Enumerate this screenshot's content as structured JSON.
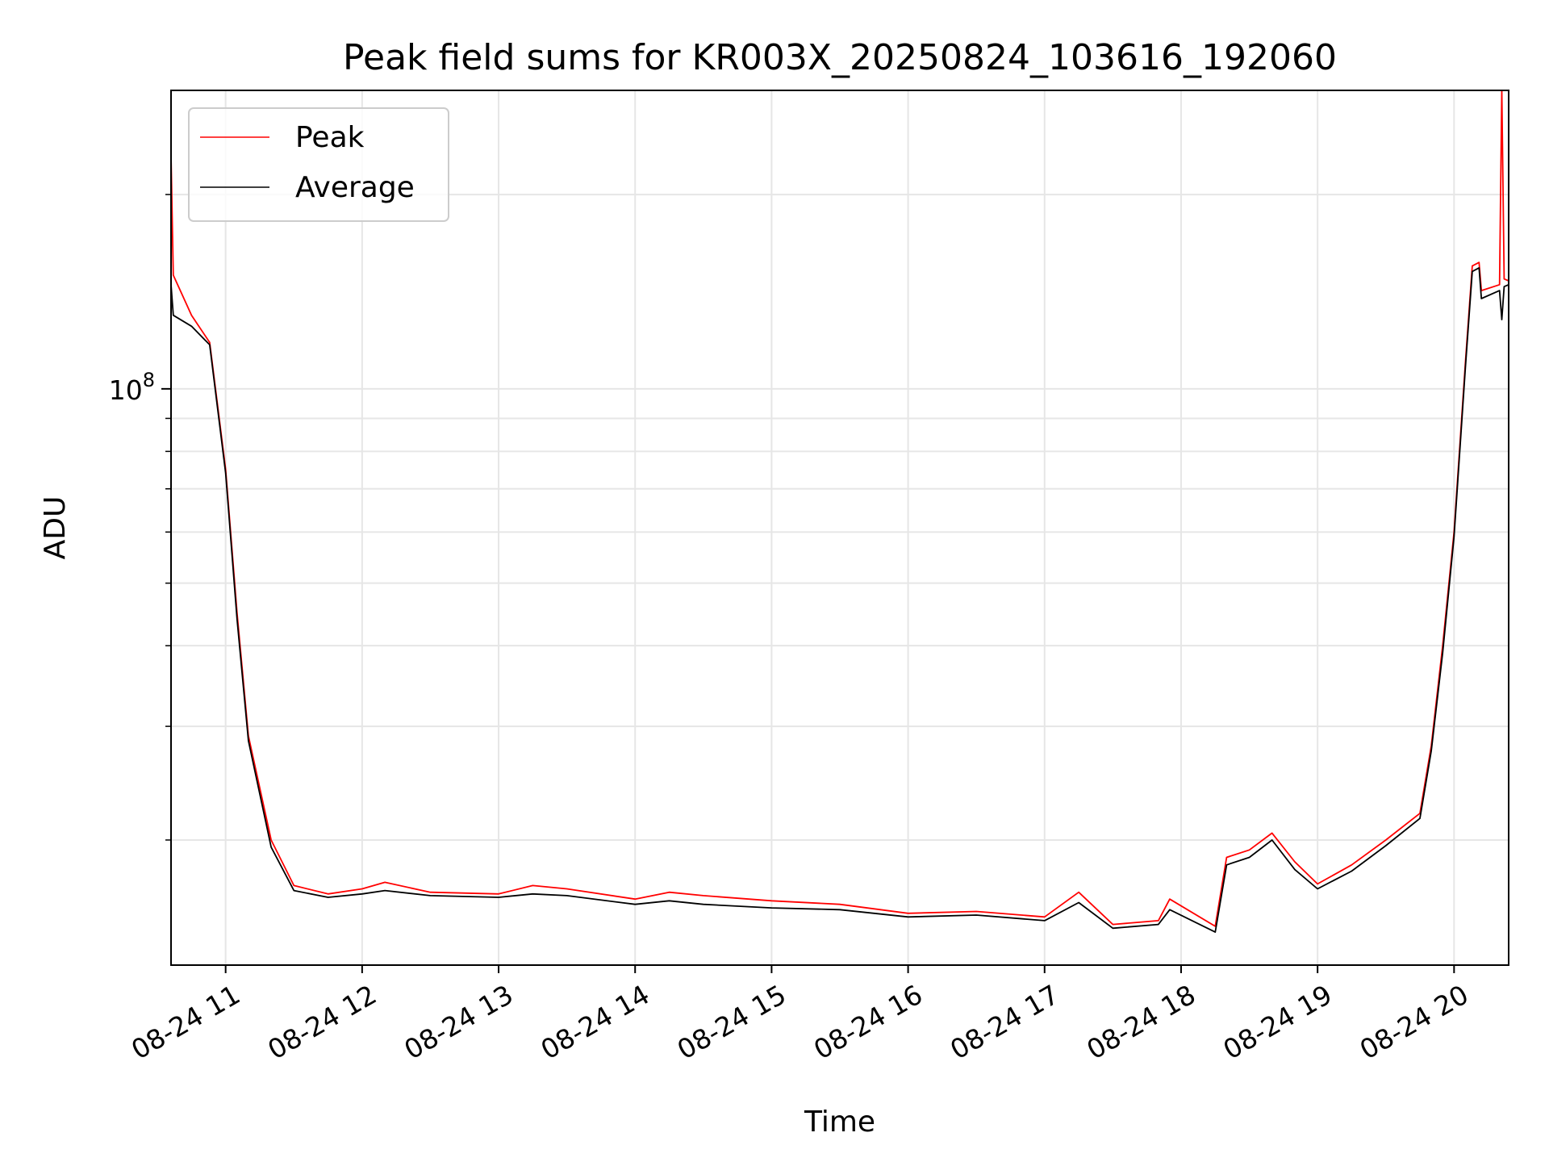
{
  "chart_data": {
    "type": "line",
    "title": "Peak field sums for KR003X_20250824_103616_192060",
    "xlabel": "Time",
    "ylabel": "ADU",
    "y_scale": "log",
    "ylim": [
      12800000,
      290000000
    ],
    "xlim": [
      "2025-08-24 10:36",
      "2025-08-24 20:24"
    ],
    "grid": true,
    "legend_position": "top-left",
    "x_tick_labels": [
      "08-24 11",
      "08-24 12",
      "08-24 13",
      "08-24 14",
      "08-24 15",
      "08-24 16",
      "08-24 17",
      "08-24 18",
      "08-24 19",
      "08-24 20"
    ],
    "x_tick_values": [
      "2025-08-24 11:00",
      "2025-08-24 12:00",
      "2025-08-24 13:00",
      "2025-08-24 14:00",
      "2025-08-24 15:00",
      "2025-08-24 16:00",
      "2025-08-24 17:00",
      "2025-08-24 18:00",
      "2025-08-24 19:00",
      "2025-08-24 20:00"
    ],
    "y_tick_label": {
      "base": "10",
      "exp": "8",
      "value": 100000000
    },
    "y_minor_ticks": [
      20000000,
      30000000,
      40000000,
      50000000,
      60000000,
      70000000,
      80000000,
      90000000,
      200000000
    ],
    "series": [
      {
        "name": "Peak",
        "color": "#ff0000",
        "points": [
          [
            "2025-08-24 10:36",
            230000000
          ],
          [
            "2025-08-24 10:37",
            150000000
          ],
          [
            "2025-08-24 10:45",
            130000000
          ],
          [
            "2025-08-24 10:53",
            118000000
          ],
          [
            "2025-08-24 11:00",
            75000000
          ],
          [
            "2025-08-24 11:05",
            45000000
          ],
          [
            "2025-08-24 11:10",
            29000000
          ],
          [
            "2025-08-24 11:20",
            20000000
          ],
          [
            "2025-08-24 11:30",
            17000000
          ],
          [
            "2025-08-24 11:45",
            16500000
          ],
          [
            "2025-08-24 12:00",
            16800000
          ],
          [
            "2025-08-24 12:10",
            17200000
          ],
          [
            "2025-08-24 12:30",
            16600000
          ],
          [
            "2025-08-24 13:00",
            16500000
          ],
          [
            "2025-08-24 13:15",
            17000000
          ],
          [
            "2025-08-24 13:30",
            16800000
          ],
          [
            "2025-08-24 14:00",
            16200000
          ],
          [
            "2025-08-24 14:15",
            16600000
          ],
          [
            "2025-08-24 14:30",
            16400000
          ],
          [
            "2025-08-24 15:00",
            16100000
          ],
          [
            "2025-08-24 15:30",
            15900000
          ],
          [
            "2025-08-24 16:00",
            15400000
          ],
          [
            "2025-08-24 16:30",
            15500000
          ],
          [
            "2025-08-24 17:00",
            15200000
          ],
          [
            "2025-08-24 17:15",
            16600000
          ],
          [
            "2025-08-24 17:30",
            14800000
          ],
          [
            "2025-08-24 17:50",
            15000000
          ],
          [
            "2025-08-24 17:55",
            16200000
          ],
          [
            "2025-08-24 18:15",
            14700000
          ],
          [
            "2025-08-24 18:20",
            18800000
          ],
          [
            "2025-08-24 18:30",
            19300000
          ],
          [
            "2025-08-24 18:40",
            20500000
          ],
          [
            "2025-08-24 18:50",
            18500000
          ],
          [
            "2025-08-24 19:00",
            17100000
          ],
          [
            "2025-08-24 19:15",
            18300000
          ],
          [
            "2025-08-24 19:30",
            20000000
          ],
          [
            "2025-08-24 19:45",
            22000000
          ],
          [
            "2025-08-24 19:50",
            28000000
          ],
          [
            "2025-08-24 19:55",
            40000000
          ],
          [
            "2025-08-24 20:00",
            60000000
          ],
          [
            "2025-08-24 20:05",
            110000000
          ],
          [
            "2025-08-24 20:08",
            155000000
          ],
          [
            "2025-08-24 20:11",
            157000000
          ],
          [
            "2025-08-24 20:12",
            142000000
          ],
          [
            "2025-08-24 20:20",
            145000000
          ],
          [
            "2025-08-24 20:21",
            290000000
          ],
          [
            "2025-08-24 20:22",
            148000000
          ],
          [
            "2025-08-24 20:24",
            147000000
          ]
        ]
      },
      {
        "name": "Average",
        "color": "#000000",
        "points": [
          [
            "2025-08-24 10:36",
            145000000
          ],
          [
            "2025-08-24 10:37",
            130000000
          ],
          [
            "2025-08-24 10:45",
            125000000
          ],
          [
            "2025-08-24 10:53",
            117000000
          ],
          [
            "2025-08-24 11:00",
            74000000
          ],
          [
            "2025-08-24 11:05",
            44000000
          ],
          [
            "2025-08-24 11:10",
            28500000
          ],
          [
            "2025-08-24 11:20",
            19500000
          ],
          [
            "2025-08-24 11:30",
            16700000
          ],
          [
            "2025-08-24 11:45",
            16300000
          ],
          [
            "2025-08-24 12:00",
            16500000
          ],
          [
            "2025-08-24 12:10",
            16700000
          ],
          [
            "2025-08-24 12:30",
            16400000
          ],
          [
            "2025-08-24 13:00",
            16300000
          ],
          [
            "2025-08-24 13:15",
            16500000
          ],
          [
            "2025-08-24 13:30",
            16400000
          ],
          [
            "2025-08-24 14:00",
            15900000
          ],
          [
            "2025-08-24 14:15",
            16100000
          ],
          [
            "2025-08-24 14:30",
            15900000
          ],
          [
            "2025-08-24 15:00",
            15700000
          ],
          [
            "2025-08-24 15:30",
            15600000
          ],
          [
            "2025-08-24 16:00",
            15200000
          ],
          [
            "2025-08-24 16:30",
            15300000
          ],
          [
            "2025-08-24 17:00",
            15000000
          ],
          [
            "2025-08-24 17:15",
            16000000
          ],
          [
            "2025-08-24 17:30",
            14600000
          ],
          [
            "2025-08-24 17:50",
            14800000
          ],
          [
            "2025-08-24 17:55",
            15600000
          ],
          [
            "2025-08-24 18:15",
            14400000
          ],
          [
            "2025-08-24 18:20",
            18300000
          ],
          [
            "2025-08-24 18:30",
            18800000
          ],
          [
            "2025-08-24 18:40",
            20000000
          ],
          [
            "2025-08-24 18:50",
            18000000
          ],
          [
            "2025-08-24 19:00",
            16800000
          ],
          [
            "2025-08-24 19:15",
            17900000
          ],
          [
            "2025-08-24 19:30",
            19600000
          ],
          [
            "2025-08-24 19:45",
            21600000
          ],
          [
            "2025-08-24 19:50",
            27500000
          ],
          [
            "2025-08-24 19:55",
            39000000
          ],
          [
            "2025-08-24 20:00",
            59000000
          ],
          [
            "2025-08-24 20:05",
            108000000
          ],
          [
            "2025-08-24 20:08",
            152000000
          ],
          [
            "2025-08-24 20:11",
            154000000
          ],
          [
            "2025-08-24 20:12",
            138000000
          ],
          [
            "2025-08-24 20:20",
            142000000
          ],
          [
            "2025-08-24 20:21",
            128000000
          ],
          [
            "2025-08-24 20:22",
            144000000
          ],
          [
            "2025-08-24 20:24",
            145000000
          ]
        ]
      }
    ]
  }
}
